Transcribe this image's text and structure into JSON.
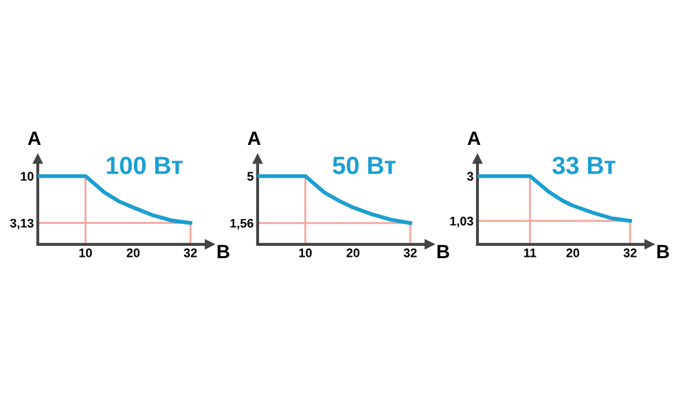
{
  "chart_data": [
    {
      "type": "line",
      "title": "100 Вт",
      "xlabel": "В",
      "ylabel": "А",
      "xlim": [
        0,
        36
      ],
      "ylim": [
        0,
        12.5
      ],
      "xticks": [
        10,
        20,
        32
      ],
      "yticks": [
        10,
        {
          "value": 3.13,
          "label": "3,13"
        }
      ],
      "series": [
        {
          "color": "#1a9fd0",
          "x": [
            0,
            10,
            14,
            17,
            20,
            24,
            28,
            32
          ],
          "values": [
            10,
            10,
            7.6,
            6.3,
            5.4,
            4.3,
            3.5,
            3.13
          ]
        }
      ],
      "ref_lines": [
        {
          "axis": "x",
          "value": 10,
          "color": "#f4a6a0"
        },
        {
          "axis": "x",
          "value": 32,
          "color": "#f4a6a0"
        },
        {
          "axis": "y",
          "value": 3.13,
          "color": "#f4a6a0"
        }
      ]
    },
    {
      "type": "line",
      "title": "50 Вт",
      "xlabel": "В",
      "ylabel": "А",
      "xlim": [
        0,
        36
      ],
      "ylim": [
        0,
        6.25
      ],
      "xticks": [
        10,
        20,
        32
      ],
      "yticks": [
        5,
        {
          "value": 1.56,
          "label": "1,56"
        }
      ],
      "series": [
        {
          "color": "#1a9fd0",
          "x": [
            0,
            10,
            14,
            17,
            20,
            24,
            28,
            32
          ],
          "values": [
            5,
            5,
            3.8,
            3.2,
            2.7,
            2.2,
            1.8,
            1.56
          ]
        }
      ],
      "ref_lines": [
        {
          "axis": "x",
          "value": 10,
          "color": "#f4a6a0"
        },
        {
          "axis": "x",
          "value": 32,
          "color": "#f4a6a0"
        },
        {
          "axis": "y",
          "value": 1.56,
          "color": "#f4a6a0"
        }
      ]
    },
    {
      "type": "line",
      "title": "33 Вт",
      "xlabel": "В",
      "ylabel": "А",
      "xlim": [
        0,
        36
      ],
      "ylim": [
        0,
        3.75
      ],
      "xticks": [
        11,
        20,
        32
      ],
      "yticks": [
        3,
        {
          "value": 1.03,
          "label": "1,03"
        }
      ],
      "series": [
        {
          "color": "#1a9fd0",
          "x": [
            0,
            11,
            15,
            18,
            20,
            24,
            28,
            32
          ],
          "values": [
            3,
            3,
            2.3,
            1.9,
            1.7,
            1.4,
            1.15,
            1.03
          ]
        }
      ],
      "ref_lines": [
        {
          "axis": "x",
          "value": 11,
          "color": "#f4a6a0"
        },
        {
          "axis": "x",
          "value": 32,
          "color": "#f4a6a0"
        },
        {
          "axis": "y",
          "value": 1.03,
          "color": "#f4a6a0"
        }
      ]
    }
  ]
}
